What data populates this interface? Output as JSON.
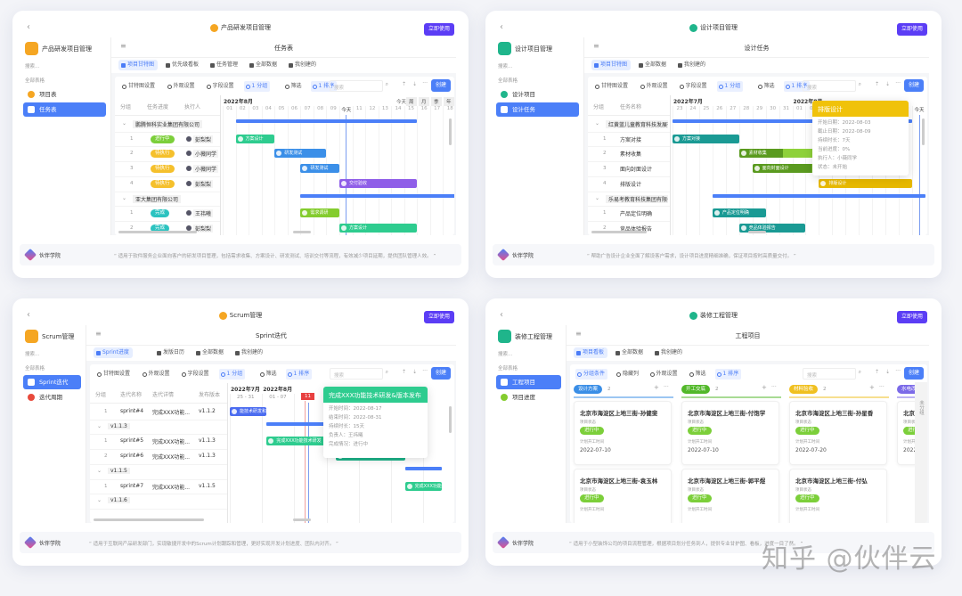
{
  "watermark": "知乎 @伙伴云",
  "cards": [
    {
      "kind": "gantt",
      "title": "产品研发项目管理",
      "icon_color": "#f5a623",
      "cta": "立即使用",
      "sidebar": {
        "app_name": "产品研发项目管理",
        "search": "搜索...",
        "section": "全部表格",
        "items": [
          {
            "label": "项目表",
            "icon": "table-icon",
            "icon_color": "#f5a623",
            "active": false
          },
          {
            "label": "任务表",
            "icon": "table-icon",
            "icon_color": "#ffffff",
            "active": true
          }
        ]
      },
      "header_title": "任务表",
      "tabs": [
        {
          "label": "项目甘特图",
          "active": true
        },
        {
          "label": "优先级看板",
          "active": false
        },
        {
          "label": "任务管理",
          "active": false
        },
        {
          "label": "全部数据",
          "active": false
        },
        {
          "label": "我创建的",
          "active": false
        }
      ],
      "toolbar": [
        {
          "label": "甘特图设置",
          "hl": false
        },
        {
          "label": "外观设置",
          "hl": false
        },
        {
          "label": "字段设置",
          "hl": false
        },
        {
          "label": "1 分组",
          "hl": true
        },
        {
          "label": "筛选",
          "hl": false
        },
        {
          "label": "1 排序",
          "hl": true
        }
      ],
      "search_placeholder": "搜索",
      "create": "创建",
      "gantt": {
        "columns": [
          "分组",
          "任务进度",
          "执行人"
        ],
        "months": [
          {
            "label": "2022年8月",
            "start": "2022-08-01"
          }
        ],
        "start": "2022-08-01",
        "days": 18,
        "today": "2022-08-10",
        "today_label": "今天",
        "scale_buttons": [
          "今天",
          "周",
          "月",
          "季",
          "年"
        ],
        "rows": [
          {
            "group": "鹏腾恒科实业集团有限公司",
            "bar": {
              "start": "2022-08-02",
              "end": "2022-08-15"
            }
          },
          {
            "index": "1",
            "cells": [
              {
                "kind": "pill",
                "text": "进行中",
                "color": "#7ccf3a"
              },
              {
                "kind": "person",
                "text": "彭梨梨"
              }
            ],
            "bar": {
              "start": "2022-08-02",
              "end": "2022-08-04",
              "label": "方案设计",
              "color": "#2ecc8f"
            }
          },
          {
            "index": "2",
            "cells": [
              {
                "kind": "pill",
                "text": "待执行",
                "color": "#f5c02c"
              },
              {
                "kind": "person",
                "text": "小薇同学"
              }
            ],
            "bar": {
              "start": "2022-08-05",
              "end": "2022-08-08",
              "label": "研发测试",
              "color": "#3b8fe8"
            }
          },
          {
            "index": "3",
            "cells": [
              {
                "kind": "pill",
                "text": "待执行",
                "color": "#f5c02c"
              },
              {
                "kind": "person",
                "text": "小薇同学"
              }
            ],
            "bar": {
              "start": "2022-08-07",
              "end": "2022-08-09",
              "label": "研发测试",
              "color": "#3b8fe8"
            }
          },
          {
            "index": "4",
            "cells": [
              {
                "kind": "pill",
                "text": "待执行",
                "color": "#f5c02c"
              },
              {
                "kind": "person",
                "text": "彭梨梨"
              }
            ],
            "bar": {
              "start": "2022-08-10",
              "end": "2022-08-15",
              "label": "交付验收",
              "color": "#8f5ee8"
            }
          },
          {
            "group": "亚大集团有限公司",
            "bar": {
              "start": "2022-08-07",
              "end": "2022-08-18"
            }
          },
          {
            "index": "1",
            "cells": [
              {
                "kind": "pill",
                "text": "完成",
                "color": "#2cc3c0"
              },
              {
                "kind": "person",
                "text": "王祎曦"
              }
            ],
            "bar": {
              "start": "2022-08-07",
              "end": "2022-08-09",
              "label": "需求调研",
              "color": "#84cc2e"
            }
          },
          {
            "index": "2",
            "cells": [
              {
                "kind": "pill",
                "text": "完成",
                "color": "#2cc3c0"
              },
              {
                "kind": "person",
                "text": "彭梨梨"
              }
            ],
            "bar": {
              "start": "2022-08-10",
              "end": "2022-08-15",
              "label": "方案设计",
              "color": "#2ecc8f"
            }
          }
        ]
      },
      "footer": {
        "brand": "伙伴学院",
        "quote": "“ 适用于软件服务企业面向客户的研发项目管理，包括需求收集、方案设计、研发测试、培训交付等流程，有效减少项目延期，提供团队管理人效。 ”"
      }
    },
    {
      "kind": "gantt",
      "title": "设计项目管理",
      "icon_color": "#1fb58b",
      "cta": "立即使用",
      "sidebar": {
        "app_name": "设计项目管理",
        "search": "搜索...",
        "section": "全部表格",
        "items": [
          {
            "label": "设计项目",
            "icon": "target-icon",
            "icon_color": "#1fb58b",
            "active": false
          },
          {
            "label": "设计任务",
            "icon": "palette-icon",
            "icon_color": "#ffffff",
            "active": true
          }
        ]
      },
      "header_title": "设计任务",
      "tabs": [
        {
          "label": "项目甘特图",
          "active": true
        },
        {
          "label": "全部数据",
          "active": false
        },
        {
          "label": "我创建的",
          "active": false
        }
      ],
      "toolbar": [
        {
          "label": "甘特图设置",
          "hl": false
        },
        {
          "label": "外观设置",
          "hl": false
        },
        {
          "label": "字段设置",
          "hl": false
        },
        {
          "label": "1 分组",
          "hl": true
        },
        {
          "label": "筛选",
          "hl": false
        },
        {
          "label": "1 排序",
          "hl": true
        }
      ],
      "search_placeholder": "搜索",
      "create": "创建",
      "gantt": {
        "columns": [
          "分组",
          "任务名称"
        ],
        "months": [
          {
            "label": "2022年7月",
            "start": "2022-07-23"
          },
          {
            "label": "2022年8月",
            "start": "2022-08-01"
          }
        ],
        "start": "2022-07-23",
        "days": 19,
        "today": "2022-08-10",
        "today_label": "今天",
        "scale_buttons": [],
        "rows": [
          {
            "group": "红黄蓝儿童教育科技发展有限公司",
            "bar": {
              "start": "2022-07-23",
              "end": "2022-08-09"
            }
          },
          {
            "index": "1",
            "cells": [
              {
                "kind": "text",
                "text": "方案对接"
              }
            ],
            "bar": {
              "start": "2022-07-23",
              "end": "2022-07-27",
              "label": "方案对接",
              "color": "#1a9a94"
            }
          },
          {
            "index": "2",
            "cells": [
              {
                "kind": "text",
                "text": "素材收集"
              }
            ],
            "bar": {
              "start": "2022-07-28",
              "end": "2022-08-02",
              "label": "素材收集",
              "color": "#5a9a1f",
              "light": "#8ed13a",
              "progress": 0.55
            }
          },
          {
            "index": "3",
            "cells": [
              {
                "kind": "text",
                "text": "面向封面设计"
              }
            ],
            "bar": {
              "start": "2022-07-29",
              "end": "2022-08-03",
              "label": "面向封面设计",
              "color": "#5a9a1f",
              "light": "#8ed13a",
              "progress": 0.75
            }
          },
          {
            "index": "4",
            "cells": [
              {
                "kind": "text",
                "text": "排版设计"
              }
            ],
            "bar": {
              "start": "2022-08-03",
              "end": "2022-08-09",
              "label": "排版设计",
              "color": "#e6b800"
            }
          },
          {
            "group": "乐易考教育科技集团有限公司",
            "bar": {
              "start": "2022-07-26",
              "end": "2022-08-10"
            }
          },
          {
            "index": "1",
            "cells": [
              {
                "kind": "text",
                "text": "产品定位明确"
              }
            ],
            "bar": {
              "start": "2022-07-26",
              "end": "2022-07-29",
              "label": "产品定位明确",
              "color": "#1a9a94"
            }
          },
          {
            "index": "2",
            "cells": [
              {
                "kind": "text",
                "text": "竞品体验报告"
              }
            ],
            "bar": {
              "start": "2022-07-28",
              "end": "2022-08-01",
              "label": "竞品体验报告",
              "color": "#1a9a94"
            }
          }
        ],
        "tooltip": {
          "title": "排版设计",
          "color": "#f0c20a",
          "lines": [
            "开始日期：2022-08-03",
            "截止日期：2022-08-09",
            "持续时长：7天",
            "当前进度：0%",
            "执行人：小薇同学",
            "状态：未开始"
          ]
        }
      },
      "footer": {
        "brand": "伙伴学院",
        "quote": "“ 帮助广告设计企业全面了解设客户需求，设计项目进度精细准确，保证项目按时高质量交付。 ”"
      }
    },
    {
      "kind": "gantt",
      "title": "Scrum管理",
      "icon_color": "#f5a623",
      "cta": "立即使用",
      "sidebar": {
        "app_name": "Scrum管理",
        "search": "搜索...",
        "section": "全部表格",
        "items": [
          {
            "label": "Sprint迭代",
            "icon": "calendar-icon",
            "icon_color": "#ffffff",
            "active": true
          },
          {
            "label": "迭代周期",
            "icon": "clock-icon",
            "icon_color": "#e84a3c",
            "active": false
          }
        ]
      },
      "header_title": "Sprint迭代",
      "tabs": [
        {
          "label": "Sprint进度",
          "active": true
        },
        {
          "label": "发版日历",
          "active": false
        },
        {
          "label": "全部数据",
          "active": false
        },
        {
          "label": "我创建的",
          "active": false
        }
      ],
      "toolbar": [
        {
          "label": "甘特图设置",
          "hl": false
        },
        {
          "label": "外观设置",
          "hl": false
        },
        {
          "label": "字段设置",
          "hl": false
        },
        {
          "label": "1 分组",
          "hl": true
        },
        {
          "label": "筛选",
          "hl": false
        },
        {
          "label": "1 排序",
          "hl": true
        }
      ],
      "search_placeholder": "搜索",
      "create": "创建",
      "gantt": {
        "columns": [
          "分组",
          "迭代名称",
          "迭代详情",
          "发布版本"
        ],
        "months": [
          {
            "label": "2022年7月",
            "start": "2022-07-25"
          },
          {
            "label": "2022年8月",
            "start": "2022-08-01"
          }
        ],
        "start": "2022-07-25",
        "days": 46,
        "week_labels": [
          {
            "label": "25 - 31",
            "start": "2022-07-25"
          },
          {
            "label": "01 - 07",
            "start": "2022-08-01"
          }
        ],
        "today": "2022-08-11",
        "today_label": "11",
        "scale_buttons": [],
        "rows": [
          {
            "index": "1",
            "cells": [
              {
                "kind": "text",
                "text": "sprint#4"
              },
              {
                "kind": "text",
                "text": "完成XXX功能..."
              },
              {
                "kind": "text",
                "text": "v1.1.2"
              }
            ],
            "bar": {
              "start": "2022-07-20",
              "end": "2022-08-01",
              "label": "能技术研发和...",
              "color": "#4b6cf0"
            }
          },
          {
            "group": "v1.1.3",
            "bar": {
              "start": "2022-08-02",
              "end": "2022-08-31"
            }
          },
          {
            "index": "1",
            "cells": [
              {
                "kind": "text",
                "text": "sprint#5"
              },
              {
                "kind": "text",
                "text": "完成XXX功能..."
              },
              {
                "kind": "text",
                "text": "v1.1.3"
              }
            ],
            "bar": {
              "start": "2022-08-02",
              "end": "2022-08-16",
              "label": "完成XXX功能技术研发",
              "color": "#2ecc8f"
            }
          },
          {
            "index": "2",
            "cells": [
              {
                "kind": "text",
                "text": "sprint#6"
              },
              {
                "kind": "text",
                "text": "完成XXX功能..."
              },
              {
                "kind": "text",
                "text": "v1.1.3"
              }
            ],
            "bar": {
              "start": "2022-08-17",
              "end": "2022-08-31",
              "label": "完成XXX功能技术研发和...",
              "color": "#1fb58b"
            }
          },
          {
            "group": "v1.1.5",
            "bar": {
              "start": "2022-09-01",
              "end": "2022-09-14"
            }
          },
          {
            "index": "1",
            "cells": [
              {
                "kind": "text",
                "text": "sprint#7"
              },
              {
                "kind": "text",
                "text": "完成XXX功能..."
              },
              {
                "kind": "text",
                "text": "v1.1.5"
              }
            ],
            "bar": {
              "start": "2022-09-01",
              "end": "2022-09-14",
              "label": "完成XXX功能研",
              "color": "#2ecc8f"
            }
          },
          {
            "group": "v1.1.6"
          }
        ],
        "tooltip": {
          "title": "完成XXX功能技术研发&版本发布",
          "color": "#2ecc8f",
          "lines": [
            "开始时间：2022-08-17",
            "结束时间：2022-08-31",
            "持续时长：15天",
            "负责人：王祎曦",
            "完成情况：进行中"
          ]
        }
      },
      "footer": {
        "brand": "伙伴学院",
        "quote": "“ 适用于互联网产品研发部门，实现敏捷开发中的Scrum计划跟踪和管理，更好实现开发计划进度、团队内对齐。 ”"
      }
    },
    {
      "kind": "kanban",
      "title": "装修工程管理",
      "icon_color": "#1fb58b",
      "cta": "立即使用",
      "sidebar": {
        "app_name": "装修工程管理",
        "search": "搜索...",
        "section": "全部表格",
        "items": [
          {
            "label": "工程项目",
            "icon": "paint-roller-icon",
            "icon_color": "#ffffff",
            "active": true
          },
          {
            "label": "项目进度",
            "icon": "progress-icon",
            "icon_color": "#84cc2e",
            "active": false
          }
        ]
      },
      "header_title": "工程项目",
      "tabs": [
        {
          "label": "项目看板",
          "active": true
        },
        {
          "label": "全部数据",
          "active": false
        },
        {
          "label": "我创建的",
          "active": false
        }
      ],
      "toolbar": [
        {
          "label": "分组条件",
          "hl": true
        },
        {
          "label": "隐藏列",
          "hl": false
        },
        {
          "label": "外观设置",
          "hl": false
        },
        {
          "label": "筛选",
          "hl": false
        },
        {
          "label": "1 排序",
          "hl": true
        }
      ],
      "search_placeholder": "搜索",
      "create": "创建",
      "kanban": {
        "status_label": "项目状态",
        "date_label": "计划开工时间",
        "columns": [
          {
            "label": "设计方案",
            "count": "2",
            "color": "#3a8ee6",
            "cards": [
              {
                "title": "北京市海淀区上地三街-孙健斐",
                "status": "进行中",
                "date": "2022-07-10"
              },
              {
                "title": "北京市海淀区上地三街-袁玉林",
                "status": "进行中",
                "date": ""
              }
            ]
          },
          {
            "label": "开工交底",
            "count": "2",
            "color": "#52b82a",
            "cards": [
              {
                "title": "北京市海淀区上地三街-付饱学",
                "status": "进行中",
                "date": "2022-07-10"
              },
              {
                "title": "北京市海淀区上地三街-郭平煜",
                "status": "进行中",
                "date": ""
              }
            ]
          },
          {
            "label": "材料验收",
            "count": "2",
            "color": "#f0c020",
            "cards": [
              {
                "title": "北京市海淀区上地三街-孙星香",
                "status": "进行中",
                "date": "2022-07-20"
              },
              {
                "title": "北京市海淀区上地三街-付弘",
                "status": "进行中",
                "date": ""
              }
            ]
          },
          {
            "label": "水电改",
            "count": "",
            "color": "#7b6ae8",
            "cards": [
              {
                "title": "北京",
                "status": "进行中",
                "date": "2022"
              }
            ]
          }
        ],
        "status_color": "#7ccf3a",
        "side_label": "未分组"
      },
      "footer": {
        "brand": "伙伴学院",
        "quote": "“ 适用于小型装饰公司的项目流程管理，根据项目划分任务到人，提供专业甘护图、看板，进度一目了然。 ”"
      }
    }
  ]
}
